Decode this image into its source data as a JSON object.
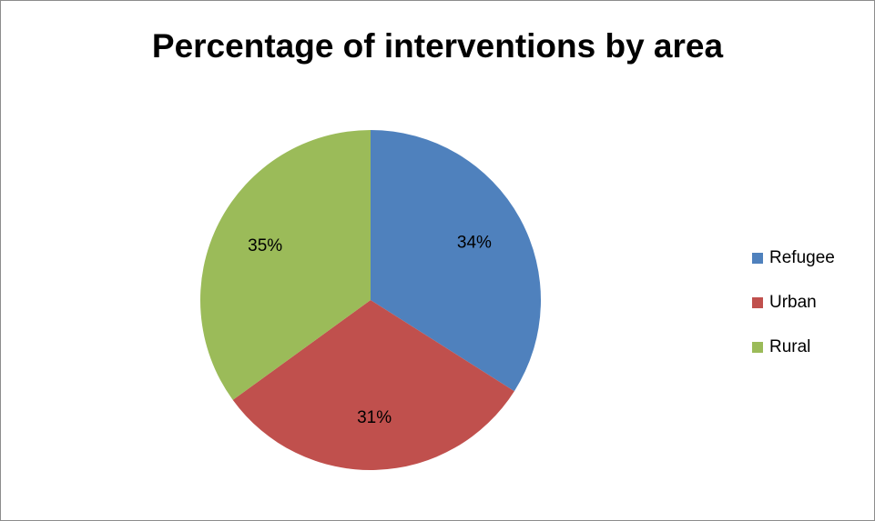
{
  "colors": {
    "refugee": "#4f81bd",
    "urban": "#c0504d",
    "rural": "#9bbb59"
  },
  "chart_data": {
    "type": "pie",
    "title": "Percentage of interventions by area",
    "categories": [
      "Refugee",
      "Urban",
      "Rural"
    ],
    "values": [
      34,
      31,
      35
    ],
    "data_labels": [
      "34%",
      "31%",
      "35%"
    ],
    "colors": [
      "#4f81bd",
      "#c0504d",
      "#9bbb59"
    ],
    "legend_position": "right",
    "start_angle": "12 o'clock",
    "direction": "clockwise"
  }
}
